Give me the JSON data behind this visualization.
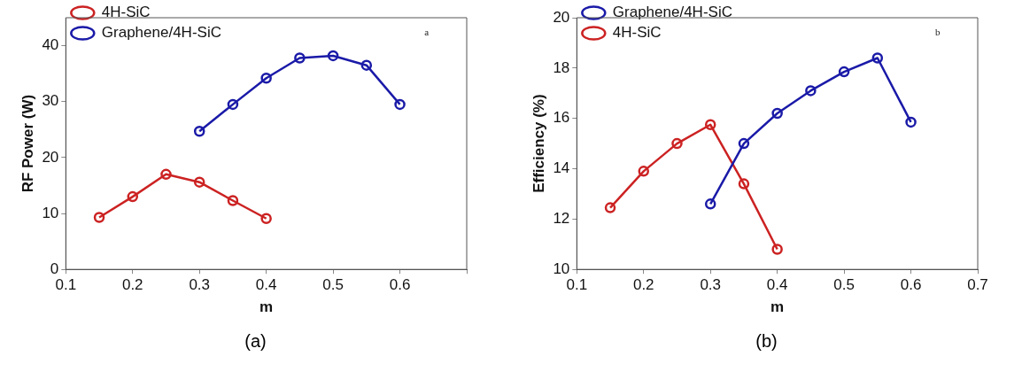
{
  "chart_data": [
    {
      "type": "line",
      "xlabel": "m",
      "ylabel": "RF Power (W)",
      "annotations": [
        "a",
        "(a)"
      ],
      "xlim": [
        0.1,
        0.7
      ],
      "xticks": [
        0.1,
        0.2,
        0.3,
        0.4,
        0.5,
        0.6,
        {
          "value": 0.7,
          "label": null
        }
      ],
      "ylim": [
        0,
        45
      ],
      "yticks": [
        0,
        10,
        20,
        30,
        40
      ],
      "grid": false,
      "legend": "top left",
      "marker": "circle",
      "line_style": "solid",
      "series": [
        {
          "name": "4H-SiC",
          "color": "#cc2222",
          "x": [
            0.15,
            0.2,
            0.25,
            0.3,
            0.35,
            0.4
          ],
          "values": [
            9.3,
            13,
            17,
            15.6,
            12.3,
            9.1
          ]
        },
        {
          "name": "Graphene/4H-SiC",
          "color": "#1a1aa8",
          "x": [
            0.3,
            0.35,
            0.4,
            0.45,
            0.5,
            0.55,
            0.6
          ],
          "values": [
            24.7,
            29.5,
            34.2,
            37.8,
            38.2,
            36.5,
            29.5
          ]
        }
      ]
    },
    {
      "type": "line",
      "xlabel": "m",
      "ylabel": "Efficiency (%)",
      "annotations": [
        "b",
        "(b)"
      ],
      "xlim": [
        0.1,
        0.7
      ],
      "xticks": [
        0.1,
        0.2,
        0.3,
        0.4,
        0.5,
        0.6,
        0.7
      ],
      "ylim": [
        10,
        20
      ],
      "yticks": [
        10,
        12,
        14,
        16,
        18,
        20
      ],
      "grid": false,
      "legend": "top left",
      "marker": "circle",
      "line_style": "solid",
      "series": [
        {
          "name": "Graphene/4H-SiC",
          "color": "#1a1aa8",
          "x": [
            0.3,
            0.35,
            0.4,
            0.45,
            0.5,
            0.55,
            0.6
          ],
          "values": [
            12.6,
            15.0,
            16.2,
            17.1,
            17.85,
            18.4,
            15.85
          ]
        },
        {
          "name": "4H-SiC",
          "color": "#cc2222",
          "x": [
            0.15,
            0.2,
            0.25,
            0.3,
            0.35,
            0.4
          ],
          "values": [
            12.45,
            13.9,
            15.0,
            15.75,
            13.4,
            10.8
          ]
        }
      ]
    }
  ]
}
